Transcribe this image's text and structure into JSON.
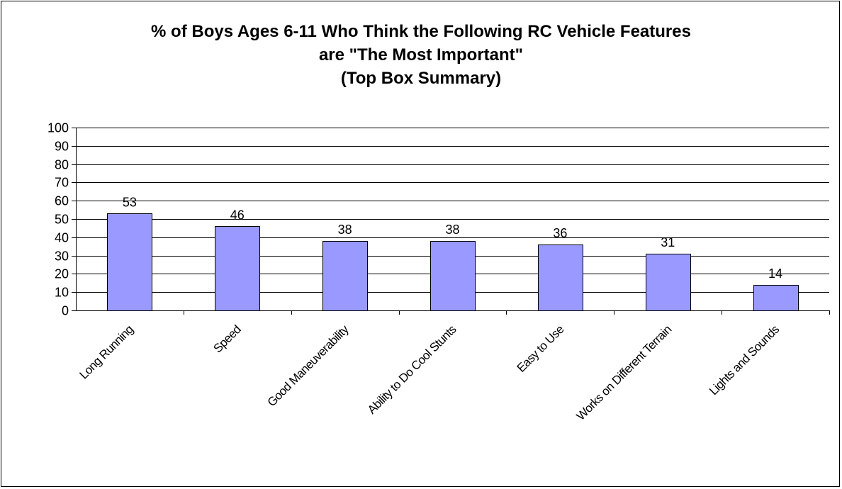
{
  "chart_data": {
    "type": "bar",
    "title_lines": [
      "% of Boys Ages 6-11 Who Think the Following RC Vehicle Features",
      "are \"The Most Important\"",
      "(Top Box Summary)"
    ],
    "categories": [
      "Long Running",
      "Speed",
      "Good Maneuverability",
      "Ability to Do Cool Stunts",
      "Easy to Use",
      "Works on Different Terrain",
      "Lights and Sounds"
    ],
    "values": [
      53,
      46,
      38,
      38,
      36,
      31,
      14
    ],
    "data_labels": [
      "53",
      "46",
      "38",
      "38",
      "36",
      "31",
      "14"
    ],
    "ylim": [
      0,
      100
    ],
    "yticks": [
      0,
      10,
      20,
      30,
      40,
      50,
      60,
      70,
      80,
      90,
      100
    ],
    "ytick_labels": [
      "0",
      "10",
      "20",
      "30",
      "40",
      "50",
      "60",
      "70",
      "80",
      "90",
      "100"
    ],
    "grid": true,
    "legend": "none",
    "colors": {
      "bar_fill": "#9999ff",
      "bar_stroke": "#000000",
      "grid": "#000000"
    }
  }
}
